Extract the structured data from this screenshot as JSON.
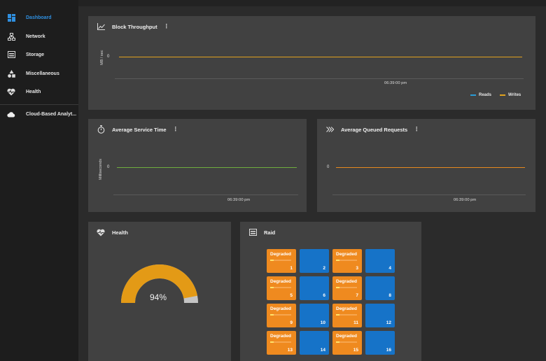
{
  "sidebar": {
    "items": [
      {
        "label": "Dashboard",
        "icon": "dashboard-icon",
        "active": true
      },
      {
        "label": "Network",
        "icon": "network-icon"
      },
      {
        "label": "Storage",
        "icon": "storage-icon"
      },
      {
        "label": "Miscellaneous",
        "icon": "shapes-icon"
      },
      {
        "label": "Health",
        "icon": "heart-pulse-icon"
      },
      {
        "label": "Cloud-Based Analyt...",
        "icon": "cloud-icon"
      }
    ]
  },
  "colors": {
    "accent": "#2f8fe0",
    "reads": "#2a9bd6",
    "writes": "#e0a21e",
    "service_time": "#6fae3e",
    "queued": "#e8891e",
    "gauge": "#e39a16",
    "gauge_rest": "#c4c4c4",
    "degraded": "#ef8a1f",
    "ok": "#1673c8"
  },
  "throughput": {
    "title": "Block Throughput",
    "menu": "⋮",
    "ylabel": "MB / sec",
    "zero": "0",
    "tick": "06:39:00 pm",
    "legend": {
      "reads": "Reads",
      "writes": "Writes"
    },
    "chart_data": {
      "type": "line",
      "x": [
        "06:39:00 pm"
      ],
      "series": [
        {
          "name": "Reads",
          "values": [
            0
          ]
        },
        {
          "name": "Writes",
          "values": [
            0
          ]
        }
      ],
      "ylabel": "MB / sec"
    }
  },
  "service_time": {
    "title": "Average Service Time",
    "menu": "⋮",
    "ylabel": "Milliseconds",
    "zero": "0",
    "tick": "06:39:00 pm",
    "chart_data": {
      "type": "line",
      "x": [
        "06:39:00 pm"
      ],
      "series": [
        {
          "values": [
            0
          ]
        }
      ],
      "ylabel": "Milliseconds"
    }
  },
  "queued": {
    "title": "Average Queued Requests",
    "menu": "⋮",
    "zero": "0",
    "tick": "06:39:00 pm",
    "chart_data": {
      "type": "line",
      "x": [
        "06:39:00 pm"
      ],
      "series": [
        {
          "values": [
            0
          ]
        }
      ]
    }
  },
  "health": {
    "title": "Health",
    "value_text": "94%",
    "value": 94
  },
  "raid": {
    "title": "Raid",
    "tiles": [
      {
        "n": "1",
        "status": "Degraded"
      },
      {
        "n": "2",
        "status": ""
      },
      {
        "n": "3",
        "status": "Degraded"
      },
      {
        "n": "4",
        "status": ""
      },
      {
        "n": "5",
        "status": "Degraded"
      },
      {
        "n": "6",
        "status": ""
      },
      {
        "n": "7",
        "status": "Degraded"
      },
      {
        "n": "8",
        "status": ""
      },
      {
        "n": "9",
        "status": "Degraded"
      },
      {
        "n": "10",
        "status": ""
      },
      {
        "n": "11",
        "status": "Degraded"
      },
      {
        "n": "12",
        "status": ""
      },
      {
        "n": "13",
        "status": "Degraded"
      },
      {
        "n": "14",
        "status": ""
      },
      {
        "n": "15",
        "status": "Degraded"
      },
      {
        "n": "16",
        "status": ""
      }
    ]
  }
}
